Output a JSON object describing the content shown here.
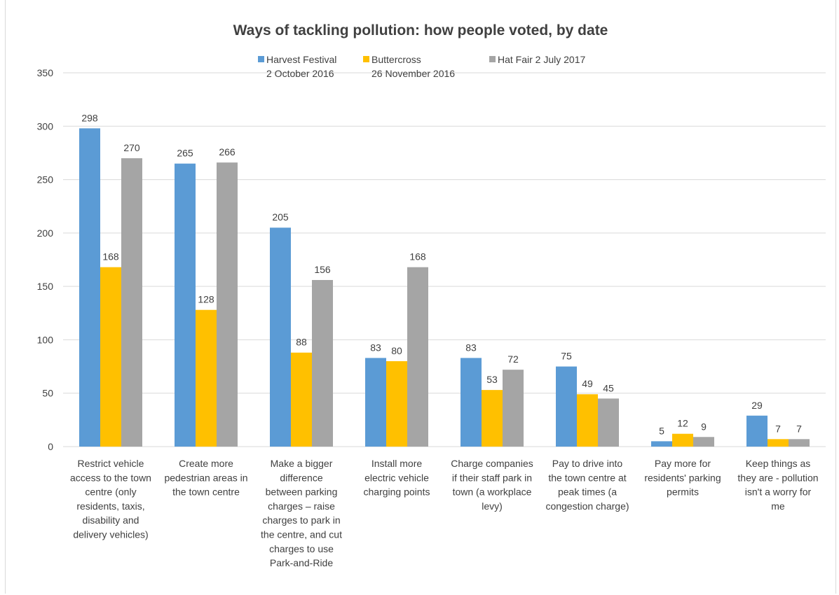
{
  "chart_data": {
    "type": "bar",
    "title": "Ways of tackling pollution: how people voted, by date",
    "xlabel": "",
    "ylabel": "",
    "ylim": [
      0,
      350
    ],
    "yticks": [
      0,
      50,
      100,
      150,
      200,
      250,
      300,
      350
    ],
    "grid": true,
    "legend_position": "top",
    "categories": [
      [
        "Restrict vehicle",
        "access to the town",
        "centre (only",
        "residents, taxis,",
        "disability and",
        "delivery vehicles)"
      ],
      [
        "Create more",
        "pedestrian areas in",
        "the town centre"
      ],
      [
        "Make a bigger",
        "difference",
        "between parking",
        "charges – raise",
        "charges to park in",
        "the centre, and cut",
        "charges to use",
        "Park-and-Ride"
      ],
      [
        "Install more",
        "electric vehicle",
        "charging points"
      ],
      [
        "Charge companies",
        "if their staff park in",
        "town (a workplace",
        "levy)"
      ],
      [
        "Pay to drive into",
        "the town centre at",
        "peak times (a",
        "congestion charge)"
      ],
      [
        "Pay more for",
        "residents' parking",
        "permits"
      ],
      [
        "Keep things as",
        "they are - pollution",
        "isn't a worry for",
        "me"
      ]
    ],
    "series": [
      {
        "name": [
          "Harvest Festival",
          "2 October 2016"
        ],
        "color": "#5b9bd5",
        "values": [
          298,
          265,
          205,
          83,
          83,
          75,
          5,
          29
        ]
      },
      {
        "name": [
          "Buttercross",
          "26 November 2016"
        ],
        "color": "#ffc000",
        "values": [
          168,
          128,
          88,
          80,
          53,
          49,
          12,
          7
        ]
      },
      {
        "name": [
          "Hat Fair 2 July 2017"
        ],
        "color": "#a5a5a5",
        "values": [
          270,
          266,
          156,
          168,
          72,
          45,
          9,
          7
        ]
      }
    ]
  }
}
